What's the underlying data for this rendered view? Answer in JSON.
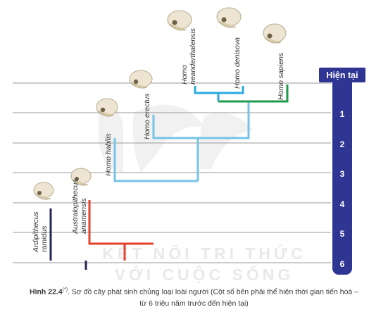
{
  "timeline": {
    "title": "Hiện tại",
    "ticks": [
      "1",
      "2",
      "3",
      "4",
      "5",
      "6"
    ]
  },
  "species": {
    "neanderthalensis": "Homo neanderthalensis",
    "denisova": "Homo denisova",
    "sapiens": "Homo sapiens",
    "erectus": "Homo erectus",
    "habilis": "Homo habilis",
    "australopithecus": "Australopithecus anamensis",
    "ardipithecus": "Ardipithecus ramidus"
  },
  "watermark": {
    "line1": "KẾT NỐI TRI THỨC",
    "line2": "VỚI CUỘC SỐNG"
  },
  "caption": {
    "figure": "Hình 22.4",
    "mark": "(*)",
    "text": ". Sơ đồ cây phát sinh chủng loại loài người (Cột số bên phải thể hiện thời gian tiến hoá –",
    "line2": "từ 6 triệu năm trước đến hiện tại)"
  },
  "colors": {
    "recent": "#29a9e0",
    "sapiens": "#1f9a4c",
    "erectus": "#76c3e6",
    "ancient": "#e4402b",
    "ardipithecus": "#262654",
    "timeline": "#2e3592"
  }
}
